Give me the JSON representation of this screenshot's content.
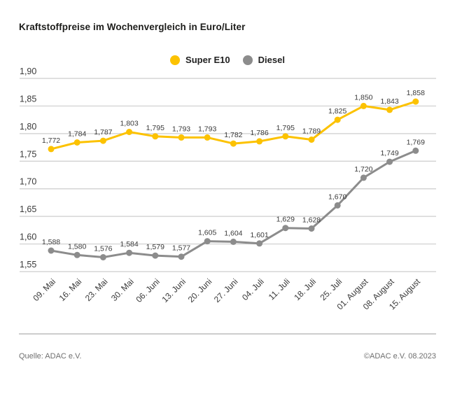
{
  "title": "Kraftstoffpreise im Wochenvergleich in Euro/Liter",
  "legend": {
    "items": [
      {
        "label": "Super E10",
        "color": "#FCC200"
      },
      {
        "label": "Diesel",
        "color": "#8C8C8C"
      }
    ]
  },
  "footer": {
    "source": "Quelle: ADAC e.V.",
    "copyright": "©ADAC e.V. 08.2023"
  },
  "colors": {
    "super_e10": "#FCC200",
    "diesel": "#8C8C8C",
    "gridline": "#cdcdcd",
    "axis_text": "#3a3a3a",
    "title_text": "#1d1d1b"
  },
  "chart_data": {
    "type": "line",
    "title": "Kraftstoffpreise im Wochenvergleich in Euro/Liter",
    "categories": [
      "09. Mai",
      "16. Mai",
      "23. Mai",
      "30. Mai",
      "06. Juni",
      "13. Juni",
      "20. Juni",
      "27. Juni",
      "04. Juli",
      "11. Juli",
      "18. Juli",
      "25. Juli",
      "01. August",
      "08. August",
      "15. August"
    ],
    "series": [
      {
        "name": "Super E10",
        "color": "#FCC200",
        "values": [
          1.772,
          1.784,
          1.787,
          1.803,
          1.795,
          1.793,
          1.793,
          1.782,
          1.786,
          1.795,
          1.789,
          1.825,
          1.85,
          1.843,
          1.858
        ],
        "labels": [
          "1,772",
          "1,784",
          "1,787",
          "1,803",
          "1,795",
          "1,793",
          "1,793",
          "1,782",
          "1,786",
          "1,795",
          "1,789",
          "1,825",
          "1,850",
          "1,843",
          "1,858"
        ]
      },
      {
        "name": "Diesel",
        "color": "#8C8C8C",
        "values": [
          1.588,
          1.58,
          1.576,
          1.584,
          1.579,
          1.577,
          1.605,
          1.604,
          1.601,
          1.629,
          1.628,
          1.67,
          1.72,
          1.749,
          1.769
        ],
        "labels": [
          "1,588",
          "1,580",
          "1,576",
          "1,584",
          "1,579",
          "1,577",
          "1,605",
          "1,604",
          "1,601",
          "1,629",
          "1,628",
          "1,670",
          "1,720",
          "1,749",
          "1,769"
        ]
      }
    ],
    "xlabel": "",
    "ylabel": "Euro/Liter",
    "ylim": [
      1.55,
      1.9
    ],
    "yticks": [
      1.9,
      1.85,
      1.8,
      1.75,
      1.7,
      1.65,
      1.6,
      1.55
    ],
    "ytick_labels": [
      "1,90",
      "1,85",
      "1,80",
      "1,75",
      "1,70",
      "1,65",
      "1,60",
      "1,55"
    ],
    "grid": true,
    "legend_position": "top-center",
    "point_labels": true,
    "decimal_separator": ","
  }
}
